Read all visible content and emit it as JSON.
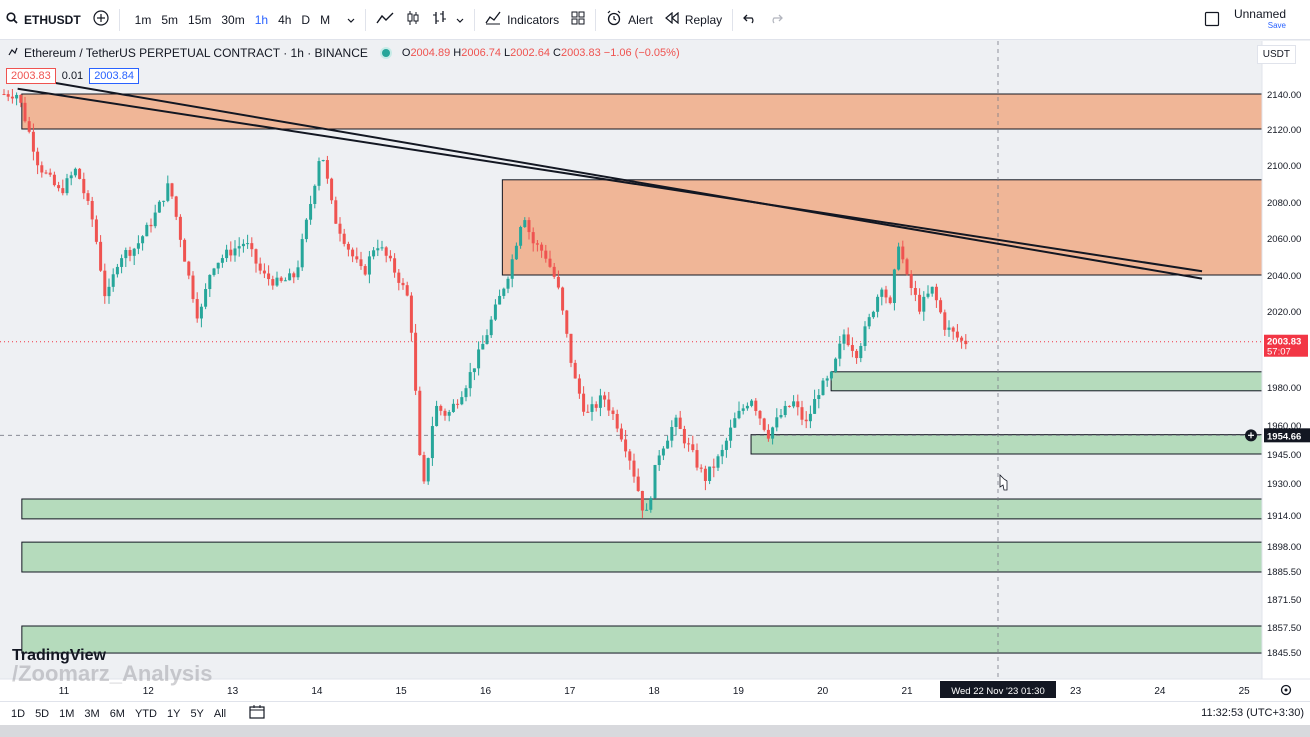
{
  "toolbar": {
    "symbol": "ETHUSDT",
    "intervals": [
      "1m",
      "5m",
      "15m",
      "30m",
      "1h",
      "4h",
      "D",
      "M"
    ],
    "active_interval": "1h",
    "indicators_label": "Indicators",
    "alert_label": "Alert",
    "replay_label": "Replay",
    "layout_name": "Unnamed",
    "save_label": "Save"
  },
  "legend": {
    "title": "Ethereum / TetherUS PERPETUAL CONTRACT · 1h · BINANCE",
    "open_label": "O",
    "open": "2004.89",
    "high_label": "H",
    "high": "2006.74",
    "low_label": "L",
    "low": "2002.64",
    "close_label": "C",
    "close": "2003.83",
    "change": "−1.06 (−0.05%)",
    "bid": "2003.83",
    "spread": "0.01",
    "ask": "2003.84",
    "currency": "USDT"
  },
  "chart_data": {
    "type": "candlestick",
    "symbol": "ETHUSDT",
    "interval": "1h",
    "y_ticks": [
      2140,
      2120,
      2100,
      2080,
      2060,
      2040,
      2020,
      1980,
      1960,
      1945,
      1930,
      1914,
      1898,
      1885.5,
      1871.5,
      1857.5,
      1845.5
    ],
    "y_tick_labels": [
      "2140.00",
      "2120.00",
      "2100.00",
      "2080.00",
      "2060.00",
      "2040.00",
      "2020.00",
      "1980.00",
      "1960.00",
      "1945.00",
      "1930.00",
      "1914.00",
      "1898.00",
      "1885.50",
      "1871.50",
      "1857.50",
      "1845.50"
    ],
    "x_ticks": [
      "11",
      "12",
      "13",
      "14",
      "15",
      "16",
      "17",
      "18",
      "19",
      "20",
      "21",
      "Wed 22 Nov '23  01:30",
      "23",
      "24",
      "25"
    ],
    "last_price": "2003.83",
    "countdown": "57:07",
    "crosshair_price": "1954.66",
    "crosshair_time": "Wed 22 Nov '23  01:30",
    "price_series": [
      {
        "day": 10.5,
        "price": 2140
      },
      {
        "day": 10.75,
        "price": 2100
      },
      {
        "day": 11.0,
        "price": 2085
      },
      {
        "day": 11.2,
        "price": 2098
      },
      {
        "day": 11.4,
        "price": 2068
      },
      {
        "day": 11.55,
        "price": 2025
      },
      {
        "day": 11.7,
        "price": 2050
      },
      {
        "day": 11.9,
        "price": 2055
      },
      {
        "day": 12.1,
        "price": 2070
      },
      {
        "day": 12.3,
        "price": 2090
      },
      {
        "day": 12.5,
        "price": 2045
      },
      {
        "day": 12.65,
        "price": 2015
      },
      {
        "day": 12.8,
        "price": 2045
      },
      {
        "day": 13.0,
        "price": 2052
      },
      {
        "day": 13.2,
        "price": 2058
      },
      {
        "day": 13.4,
        "price": 2040
      },
      {
        "day": 13.6,
        "price": 2035
      },
      {
        "day": 13.8,
        "price": 2040
      },
      {
        "day": 14.0,
        "price": 2085
      },
      {
        "day": 14.1,
        "price": 2110
      },
      {
        "day": 14.25,
        "price": 2072
      },
      {
        "day": 14.45,
        "price": 2052
      },
      {
        "day": 14.6,
        "price": 2040
      },
      {
        "day": 14.75,
        "price": 2058
      },
      {
        "day": 14.9,
        "price": 2048
      },
      {
        "day": 15.0,
        "price": 2040
      },
      {
        "day": 15.15,
        "price": 2025
      },
      {
        "day": 15.3,
        "price": 1922
      },
      {
        "day": 15.45,
        "price": 1970
      },
      {
        "day": 15.6,
        "price": 1965
      },
      {
        "day": 15.8,
        "price": 1980
      },
      {
        "day": 16.0,
        "price": 2000
      },
      {
        "day": 16.2,
        "price": 2025
      },
      {
        "day": 16.35,
        "price": 2045
      },
      {
        "day": 16.5,
        "price": 2075
      },
      {
        "day": 16.6,
        "price": 2058
      },
      {
        "day": 16.75,
        "price": 2052
      },
      {
        "day": 16.9,
        "price": 2035
      },
      {
        "day": 17.0,
        "price": 2010
      },
      {
        "day": 17.1,
        "price": 1985
      },
      {
        "day": 17.25,
        "price": 1965
      },
      {
        "day": 17.45,
        "price": 1975
      },
      {
        "day": 17.6,
        "price": 1962
      },
      {
        "day": 17.75,
        "price": 1945
      },
      {
        "day": 17.95,
        "price": 1912
      },
      {
        "day": 18.1,
        "price": 1945
      },
      {
        "day": 18.3,
        "price": 1962
      },
      {
        "day": 18.5,
        "price": 1945
      },
      {
        "day": 18.65,
        "price": 1932
      },
      {
        "day": 18.85,
        "price": 1945
      },
      {
        "day": 19.0,
        "price": 1962
      },
      {
        "day": 19.2,
        "price": 1975
      },
      {
        "day": 19.4,
        "price": 1955
      },
      {
        "day": 19.55,
        "price": 1965
      },
      {
        "day": 19.7,
        "price": 1972
      },
      {
        "day": 19.85,
        "price": 1960
      },
      {
        "day": 20.0,
        "price": 1978
      },
      {
        "day": 20.15,
        "price": 1985
      },
      {
        "day": 20.3,
        "price": 2008
      },
      {
        "day": 20.45,
        "price": 1998
      },
      {
        "day": 20.6,
        "price": 2015
      },
      {
        "day": 20.75,
        "price": 2035
      },
      {
        "day": 20.85,
        "price": 2022
      },
      {
        "day": 20.95,
        "price": 2058
      },
      {
        "day": 21.05,
        "price": 2038
      },
      {
        "day": 21.2,
        "price": 2022
      },
      {
        "day": 21.35,
        "price": 2032
      },
      {
        "day": 21.5,
        "price": 2012
      },
      {
        "day": 21.7,
        "price": 2003.83
      }
    ],
    "zones": [
      {
        "type": "supply",
        "from": 2120,
        "to": 2140,
        "start_day": 10.5,
        "color": "#f0b697"
      },
      {
        "type": "supply",
        "from": 2040,
        "to": 2092,
        "start_day": 16.2,
        "color": "#f0b697"
      },
      {
        "type": "demand",
        "from": 1978,
        "to": 1988,
        "start_day": 20.1,
        "color": "#b5dbbc"
      },
      {
        "type": "demand",
        "from": 1945,
        "to": 1955,
        "start_day": 19.15,
        "color": "#b5dbbc"
      },
      {
        "type": "demand",
        "from": 1912,
        "to": 1922,
        "start_day": 10.5,
        "color": "#b5dbbc"
      },
      {
        "type": "demand",
        "from": 1885,
        "to": 1900,
        "start_day": 10.5,
        "color": "#b5dbbc"
      },
      {
        "type": "demand",
        "from": 1845,
        "to": 1858,
        "start_day": 10.5,
        "color": "#b5dbbc"
      }
    ],
    "trendlines": [
      {
        "start": {
          "day": 10.45,
          "price": 2143
        },
        "end": {
          "day": 24.5,
          "price": 2042
        }
      },
      {
        "start": {
          "day": 10.45,
          "price": 2150
        },
        "end": {
          "day": 24.5,
          "price": 2038
        }
      }
    ],
    "colors": {
      "up": "#26a69a",
      "down": "#ef5350",
      "last_price_bg": "#f23645"
    }
  },
  "bottom": {
    "ranges": [
      "1D",
      "5D",
      "1M",
      "3M",
      "6M",
      "YTD",
      "1Y",
      "5Y",
      "All"
    ],
    "clock": "11:32:53 (UTC+3:30)"
  },
  "branding": {
    "logo": "TradingView",
    "watermark": "/Zoomarz_Analysis"
  }
}
